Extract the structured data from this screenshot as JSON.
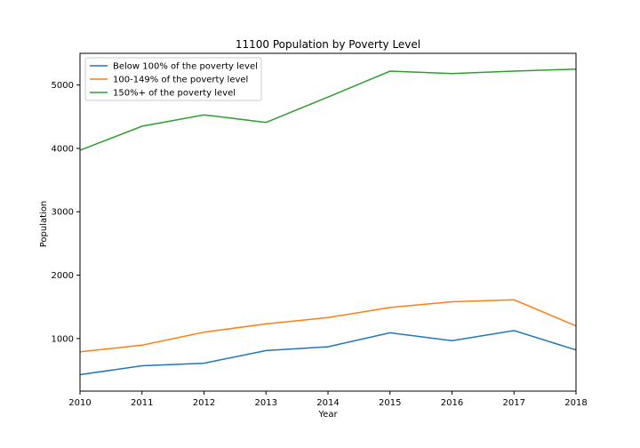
{
  "chart_data": {
    "type": "line",
    "title": "11100 Population by Poverty Level",
    "xlabel": "Year",
    "ylabel": "Population",
    "x": [
      2010,
      2011,
      2012,
      2013,
      2014,
      2015,
      2016,
      2017,
      2018
    ],
    "xlim": [
      2010,
      2018
    ],
    "ylim": [
      170,
      5500
    ],
    "yticks": [
      1000,
      2000,
      3000,
      4000,
      5000
    ],
    "grid": false,
    "legend_position": "top-left",
    "series": [
      {
        "name": "Below 100% of the poverty level",
        "color": "#1f77b4",
        "values": [
          430,
          570,
          610,
          810,
          870,
          1090,
          965,
          1125,
          820
        ]
      },
      {
        "name": "100-149% of the poverty level",
        "color": "#ff7f0e",
        "values": [
          790,
          895,
          1100,
          1230,
          1330,
          1490,
          1580,
          1610,
          1200
        ]
      },
      {
        "name": "150%+ of the poverty level",
        "color": "#2ca02c",
        "values": [
          3970,
          4350,
          4530,
          4410,
          4810,
          5220,
          5180,
          5220,
          5250
        ]
      }
    ]
  }
}
